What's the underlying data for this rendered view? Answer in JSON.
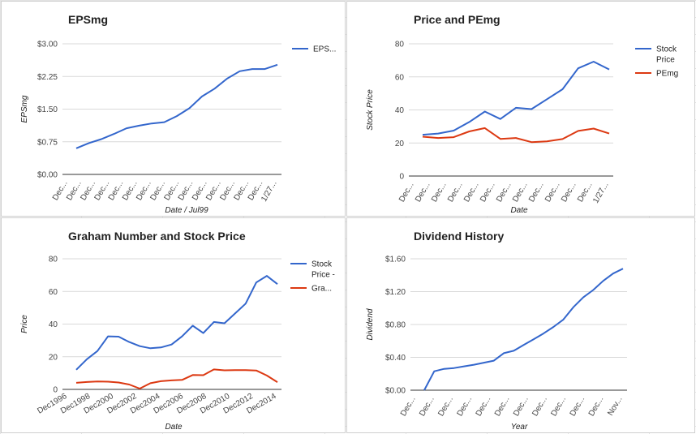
{
  "colors": {
    "blue": "#3366cc",
    "red": "#dc3912",
    "grid": "#d9d9d9"
  },
  "charts": [
    {
      "title": "EPSmg",
      "ylabel": "EPSmg",
      "xlabel": "Date / Jul99",
      "legend": [
        "EPS..."
      ],
      "ticks": [
        "$0.00",
        "$0.75",
        "$1.50",
        "$2.25",
        "$3.00"
      ],
      "xticks": [
        "Dec...",
        "Dec...",
        "Dec...",
        "Dec...",
        "Dec...",
        "Dec...",
        "Dec...",
        "Dec...",
        "Dec...",
        "Dec...",
        "Dec...",
        "Dec...",
        "Dec...",
        "Dec...",
        "Dec...",
        "1/27..."
      ]
    },
    {
      "title": "Price and PEmg",
      "ylabel": "Stock Price",
      "xlabel": "Date",
      "legend": [
        "Stock Price",
        "PEmg"
      ],
      "ticks": [
        "0",
        "20",
        "40",
        "60",
        "80"
      ],
      "xticks": [
        "Dec...",
        "Dec...",
        "Dec...",
        "Dec...",
        "Dec...",
        "Dec...",
        "Dec...",
        "Dec...",
        "Dec...",
        "Dec...",
        "Dec...",
        "Dec...",
        "1/27..."
      ]
    },
    {
      "title": "Graham Number and Stock Price",
      "ylabel": "Price",
      "xlabel": "Date",
      "legend": [
        "Stock Price -",
        "Gra..."
      ],
      "ticks": [
        "0",
        "20",
        "40",
        "60",
        "80"
      ],
      "xticks": [
        "Dec1996",
        "Dec1998",
        "Dec2000",
        "Dec2002",
        "Dec2004",
        "Dec2006",
        "Dec2008",
        "Dec2010",
        "Dec2012",
        "Dec2014"
      ]
    },
    {
      "title": "Dividend History",
      "ylabel": "Dividend",
      "xlabel": "Year",
      "ticks": [
        "$0.00",
        "$0.40",
        "$0.80",
        "$1.20",
        "$1.60"
      ],
      "xticks": [
        "Dec...",
        "Dec...",
        "Dec...",
        "Dec...",
        "Dec...",
        "Dec...",
        "Dec...",
        "Dec...",
        "Dec...",
        "Dec...",
        "Dec...",
        "Nov..."
      ]
    }
  ],
  "chart_data": [
    {
      "type": "line",
      "title": "EPSmg",
      "xlabel": "Date / Jul99",
      "ylabel": "EPSmg",
      "ylim": [
        0,
        3
      ],
      "grid": true,
      "legend_position": "right",
      "series": [
        {
          "name": "EPS...",
          "color": "#3366cc",
          "values": [
            0.6,
            0.72,
            0.81,
            0.93,
            1.06,
            1.12,
            1.17,
            1.2,
            1.34,
            1.52,
            1.79,
            1.97,
            2.2,
            2.37,
            2.42,
            2.42,
            2.52
          ]
        }
      ]
    },
    {
      "type": "line",
      "title": "Price and PEmg",
      "xlabel": "Date",
      "ylabel": "Stock Price",
      "ylim": [
        0,
        80
      ],
      "grid": true,
      "legend_position": "right",
      "series": [
        {
          "name": "Stock Price",
          "color": "#3366cc",
          "values": [
            25,
            25.7,
            27.5,
            32.7,
            39,
            34.5,
            41.3,
            40.5,
            46.5,
            52.5,
            65.2,
            69.2,
            64.5
          ]
        },
        {
          "name": "PEmg",
          "color": "#dc3912",
          "values": [
            23.8,
            23,
            23.5,
            27,
            29,
            22.5,
            23,
            20.5,
            21,
            22.4,
            27.3,
            28.7,
            25.7
          ]
        }
      ]
    },
    {
      "type": "line",
      "title": "Graham Number and Stock Price",
      "xlabel": "Date",
      "ylabel": "Price",
      "ylim": [
        0,
        80
      ],
      "grid": true,
      "legend_position": "right",
      "series": [
        {
          "name": "Stock Price -",
          "color": "#3366cc",
          "values": [
            12,
            18.5,
            23.5,
            32.5,
            32.3,
            29,
            26.5,
            25.2,
            25.7,
            27.5,
            32.5,
            39,
            34.5,
            41.3,
            40.5,
            46.5,
            52.5,
            65.5,
            69.5,
            64.5
          ]
        },
        {
          "name": "Gra...",
          "color": "#dc3912",
          "values": [
            4,
            4.5,
            4.8,
            4.7,
            4.2,
            3,
            0.5,
            3.8,
            5,
            5.5,
            5.8,
            8.8,
            8.7,
            12.2,
            11.7,
            11.8,
            11.8,
            11.6,
            8.5,
            4.4
          ]
        }
      ]
    },
    {
      "type": "line",
      "title": "Dividend History",
      "xlabel": "Year",
      "ylabel": "Dividend",
      "ylim": [
        0,
        1.6
      ],
      "grid": true,
      "legend_position": "none",
      "series": [
        {
          "color": "#3366cc",
          "values": [
            0,
            0.23,
            0.26,
            0.27,
            0.29,
            0.31,
            0.335,
            0.36,
            0.45,
            0.48,
            0.55,
            0.62,
            0.69,
            0.77,
            0.86,
            1.01,
            1.13,
            1.22,
            1.33,
            1.42,
            1.48
          ]
        }
      ]
    }
  ]
}
